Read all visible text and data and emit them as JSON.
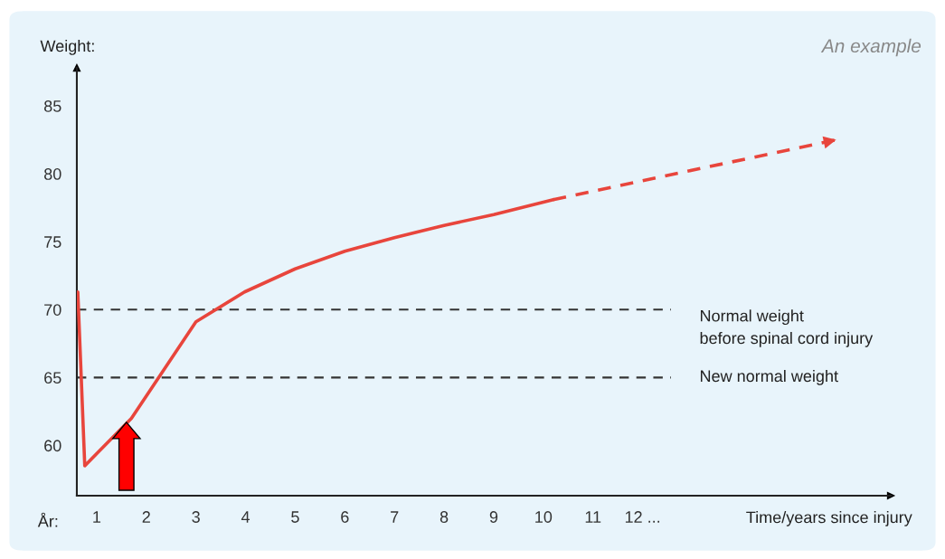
{
  "chart_data": {
    "type": "line",
    "ylabel": "Weight:",
    "xlabel": "Time/years since injury",
    "annotations": [
      "An example",
      "År:"
    ],
    "xlim": [
      0.6,
      17
    ],
    "ylim": [
      56.3,
      87.8
    ],
    "xticks": [
      1,
      2,
      3,
      4,
      5,
      6,
      7,
      8,
      9,
      10,
      11,
      {
        "value": 12,
        "label": "12 ..."
      }
    ],
    "yticks": [
      60,
      65,
      70,
      75,
      80,
      85
    ],
    "series": [
      {
        "color": "#e8453c",
        "line_style": "solid",
        "x": [
          0.62,
          0.76,
          1.7,
          3.0,
          3.98,
          5.0,
          6.0,
          7.0,
          8.0,
          9.0,
          10.2
        ],
        "values": [
          71.3,
          58.5,
          62.0,
          69.1,
          71.3,
          73.0,
          74.3,
          75.3,
          76.2,
          77.0,
          78.1
        ]
      },
      {
        "color": "#e8453c",
        "line_style": "dashed",
        "x": [
          10.2,
          15.9
        ],
        "values": [
          78.1,
          82.5
        ]
      }
    ],
    "ref_lines": [
      {
        "axis": "y",
        "value": 70,
        "label": "Normal weight\nbefore spinal cord injury",
        "color": "#333333",
        "line_style": "dashed"
      },
      {
        "axis": "y",
        "value": 65,
        "label": "New normal weight",
        "color": "#333333",
        "line_style": "dashed"
      }
    ],
    "grid": false,
    "legend": false
  }
}
